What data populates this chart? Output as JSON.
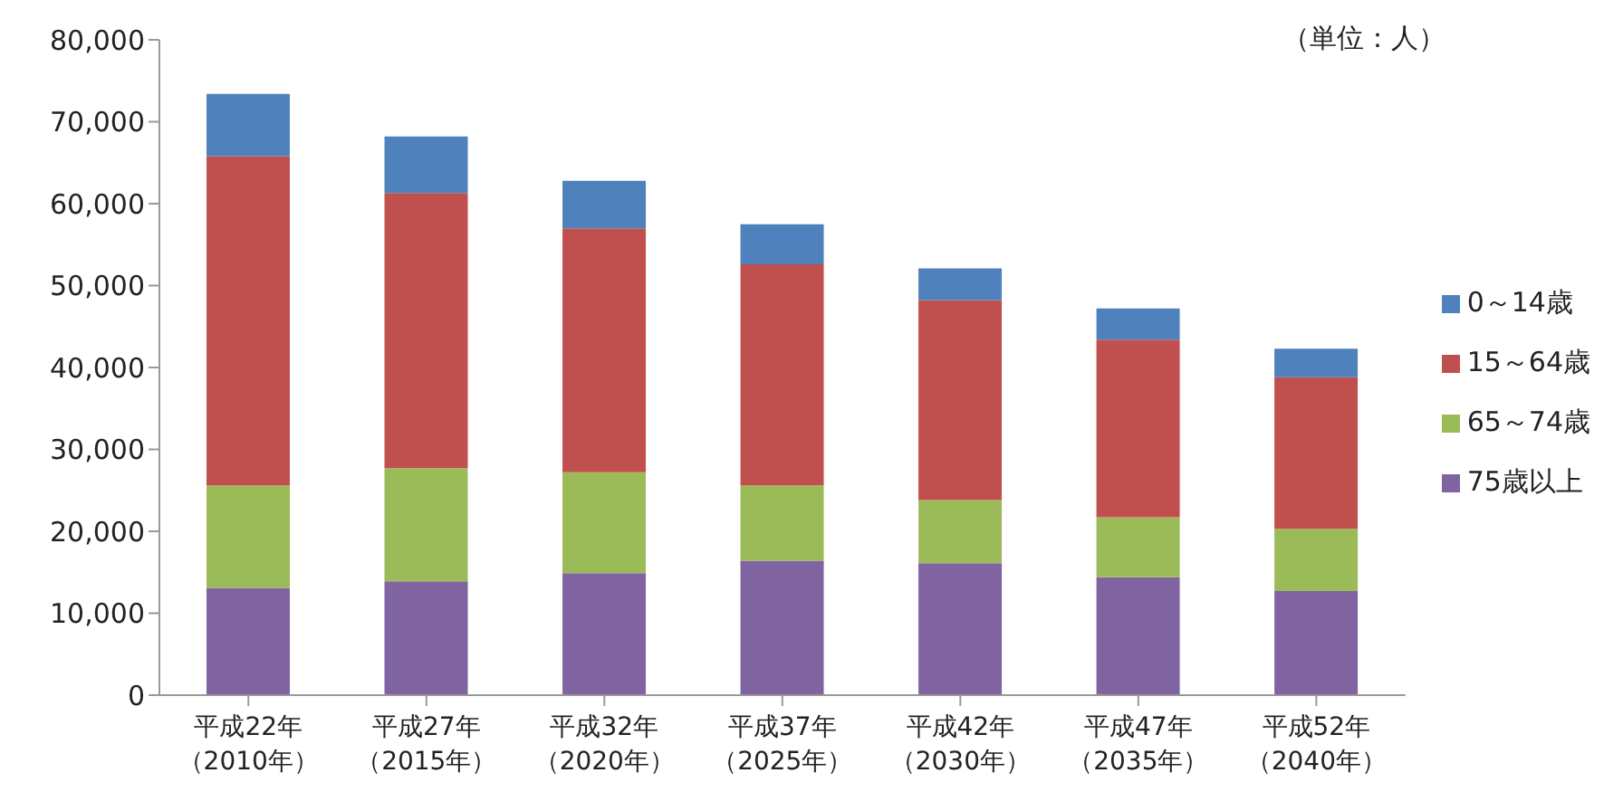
{
  "chart_data": {
    "type": "bar",
    "stacked": true,
    "annotations": [
      "（単位：人）"
    ],
    "categories": [
      "平成22年（2010年）",
      "平成27年（2015年）",
      "平成32年（2020年）",
      "平成37年（2025年）",
      "平成42年（2030年）",
      "平成47年（2035年）",
      "平成52年（2040年）"
    ],
    "series": [
      {
        "name": "75歳以上",
        "color": "#8064a2",
        "values": [
          13100,
          13900,
          14900,
          16400,
          16100,
          14400,
          12700
        ]
      },
      {
        "name": "65～74歳",
        "color": "#9bbb59",
        "values": [
          12500,
          13800,
          12300,
          9200,
          7700,
          7300,
          7600
        ]
      },
      {
        "name": "15～64歳",
        "color": "#c0504d",
        "values": [
          40200,
          33600,
          29800,
          27000,
          24400,
          21700,
          18500
        ]
      },
      {
        "name": "0～14歳",
        "color": "#4f81bd",
        "values": [
          7600,
          6900,
          5800,
          4900,
          3900,
          3800,
          3500
        ]
      }
    ],
    "ylim": [
      0,
      80000
    ],
    "yticks": [
      {
        "value": 0,
        "label": "0"
      },
      {
        "value": 10000,
        "label": "10,000"
      },
      {
        "value": 20000,
        "label": "20,000"
      },
      {
        "value": 30000,
        "label": "30,000"
      },
      {
        "value": 40000,
        "label": "40,000"
      },
      {
        "value": 50000,
        "label": "50,000"
      },
      {
        "value": 60000,
        "label": "60,000"
      },
      {
        "value": 70000,
        "label": "70,000"
      },
      {
        "value": 80000,
        "label": "80,000"
      }
    ],
    "grid": false,
    "legend": "right"
  }
}
